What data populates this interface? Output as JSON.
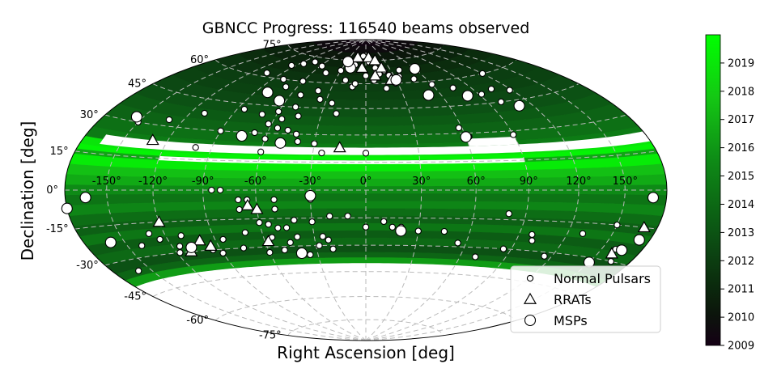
{
  "chart_data": {
    "type": "scatter",
    "projection": "aitoff",
    "title": "GBNCC Progress: 116540 beams observed",
    "xlabel": "Right Ascension [deg]",
    "ylabel": "Declination [deg]",
    "xlim": [
      -180,
      180
    ],
    "ylim": [
      -90,
      90
    ],
    "grid": true,
    "ra_ticks": [
      "-150°",
      "-120°",
      "-90°",
      "-60°",
      "-30°",
      "0°",
      "30°",
      "60°",
      "90°",
      "120°",
      "150°"
    ],
    "ra_tick_values": [
      -150,
      -120,
      -90,
      -60,
      -30,
      0,
      30,
      60,
      90,
      120,
      150
    ],
    "dec_ticks": [
      "75°",
      "60°",
      "45°",
      "30°",
      "15°",
      "0°",
      "-15°",
      "-30°",
      "-45°",
      "-60°",
      "-75°"
    ],
    "dec_tick_values": [
      75,
      60,
      45,
      30,
      15,
      0,
      -15,
      -30,
      -45,
      -60,
      -75
    ],
    "colorbar": {
      "min": 2009,
      "max": 2020,
      "ticks": [
        "2009",
        "2010",
        "2011",
        "2012",
        "2013",
        "2014",
        "2015",
        "2016",
        "2017",
        "2018",
        "2019"
      ],
      "colormap": "black-to-green"
    },
    "coverage": [
      {
        "dec": [
          85,
          90
        ],
        "year": 2009.3
      },
      {
        "dec": [
          80,
          85
        ],
        "year": 2009.6
      },
      {
        "dec": [
          75,
          80
        ],
        "year": 2010.2
      },
      {
        "dec": [
          70,
          75
        ],
        "year": 2010.8
      },
      {
        "dec": [
          65,
          70
        ],
        "year": 2011.2
      },
      {
        "dec": [
          60,
          65
        ],
        "year": 2011.5
      },
      {
        "dec": [
          55,
          60
        ],
        "year": 2012.0
      },
      {
        "dec": [
          50,
          55
        ],
        "year": 2012.2
      },
      {
        "dec": [
          45,
          50
        ],
        "year": 2012.5
      },
      {
        "dec": [
          40,
          45
        ],
        "year": 2012.9
      },
      {
        "dec": [
          35,
          40
        ],
        "year": 2013.3
      },
      {
        "dec": [
          30,
          35
        ],
        "year": 2013.7
      },
      {
        "dec": [
          25,
          30
        ],
        "year": 2014.3
      },
      {
        "dec": [
          21,
          25
        ],
        "year": 2014.8
      },
      {
        "dec": [
          18,
          21
        ],
        "year": 2018.9
      },
      {
        "dec": [
          16,
          18
        ],
        "year": 2019.5
      },
      {
        "dec": [
          14,
          16
        ],
        "year": 2016.5
      },
      {
        "dec": [
          10,
          14
        ],
        "year": 2019.2
      },
      {
        "dec": [
          6,
          10
        ],
        "year": 2017.5
      },
      {
        "dec": [
          2,
          6
        ],
        "year": 2016.7
      },
      {
        "dec": [
          -2,
          2
        ],
        "year": 2015.5
      },
      {
        "dec": [
          -6,
          -2
        ],
        "year": 2014.5
      },
      {
        "dec": [
          -10,
          -6
        ],
        "year": 2015.3
      },
      {
        "dec": [
          -14,
          -10
        ],
        "year": 2014.2
      },
      {
        "dec": [
          -18,
          -14
        ],
        "year": 2013.6
      },
      {
        "dec": [
          -22,
          -18
        ],
        "year": 2014.6
      },
      {
        "dec": [
          -26,
          -22
        ],
        "year": 2013.4
      },
      {
        "dec": [
          -30,
          -26
        ],
        "year": 2014.0
      },
      {
        "dec": [
          -34,
          -30
        ],
        "year": 2012.9
      },
      {
        "dec": [
          -37,
          -34
        ],
        "year": 2013.8
      },
      {
        "dec": [
          -40,
          -37
        ],
        "year": 2016.2
      }
    ],
    "unobserved": [
      {
        "dec": [
          19,
          23
        ],
        "ra": [
          -165,
          180
        ]
      },
      {
        "dec": [
          14,
          16
        ],
        "ra": [
          -120,
          90
        ]
      },
      {
        "dec": [
          23,
          27
        ],
        "ra": [
          60,
          90
        ]
      }
    ],
    "series": [
      {
        "name": "Normal Pulsars",
        "marker": "circle-small",
        "points": [
          [
            -95,
            68
          ],
          [
            -85,
            70
          ],
          [
            -75,
            72
          ],
          [
            -58,
            70
          ],
          [
            -45,
            66
          ],
          [
            -30,
            68
          ],
          [
            -15,
            72
          ],
          [
            -5,
            78
          ],
          [
            5,
            74
          ],
          [
            12,
            70
          ],
          [
            22,
            68
          ],
          [
            35,
            64
          ],
          [
            48,
            62
          ],
          [
            60,
            58
          ],
          [
            75,
            55
          ],
          [
            92,
            50
          ],
          [
            105,
            52
          ],
          [
            -105,
            62
          ],
          [
            -80,
            60
          ],
          [
            -70,
            56
          ],
          [
            -60,
            60
          ],
          [
            -52,
            52
          ],
          [
            -40,
            55
          ],
          [
            -35,
            50
          ],
          [
            -25,
            48
          ],
          [
            -12,
            58
          ],
          [
            0,
            65
          ],
          [
            8,
            62
          ],
          [
            18,
            57
          ],
          [
            28,
            60
          ],
          [
            -20,
            62
          ],
          [
            -10,
            60
          ],
          [
            15,
            66
          ],
          [
            25,
            65
          ],
          [
            40,
            68
          ],
          [
            -65,
            48
          ],
          [
            -60,
            42
          ],
          [
            -55,
            38
          ],
          [
            -50,
            45
          ],
          [
            -45,
            40
          ],
          [
            -48,
            32
          ],
          [
            -42,
            30
          ],
          [
            -55,
            33
          ],
          [
            -62,
            35
          ],
          [
            -68,
            30
          ],
          [
            -70,
            40
          ],
          [
            -85,
            42
          ],
          [
            -110,
            38
          ],
          [
            -130,
            33
          ],
          [
            -150,
            30
          ],
          [
            -90,
            30
          ],
          [
            -60,
            27
          ],
          [
            -50,
            25
          ],
          [
            -40,
            26
          ],
          [
            -30,
            25
          ],
          [
            -20,
            42
          ],
          [
            -25,
            20
          ],
          [
            0,
            20
          ],
          [
            -100,
            21
          ],
          [
            58,
            33
          ],
          [
            62,
            28
          ],
          [
            90,
            28
          ],
          [
            120,
            60
          ],
          [
            118,
            50
          ],
          [
            100,
            45
          ],
          [
            -60,
            20
          ],
          [
            -30,
            -5
          ],
          [
            -85,
            0
          ],
          [
            -80,
            0
          ],
          [
            -70,
            -5
          ],
          [
            -65,
            -5
          ],
          [
            -50,
            -5
          ],
          [
            -50,
            -10
          ],
          [
            -70,
            -10
          ],
          [
            -20,
            -14
          ],
          [
            -10,
            -14
          ],
          [
            -60,
            -17
          ],
          [
            -40,
            -16
          ],
          [
            -30,
            -17
          ],
          [
            -55,
            -18
          ],
          [
            -50,
            -20
          ],
          [
            -45,
            -20
          ],
          [
            -40,
            -25
          ],
          [
            -55,
            -25
          ],
          [
            -45,
            -28
          ],
          [
            -50,
            -32
          ],
          [
            -60,
            -33
          ],
          [
            -70,
            -22
          ],
          [
            -75,
            -30
          ],
          [
            -85,
            -25
          ],
          [
            -90,
            -32
          ],
          [
            -95,
            -30
          ],
          [
            -110,
            -22
          ],
          [
            -115,
            -27
          ],
          [
            -118,
            -30
          ],
          [
            -125,
            -23
          ],
          [
            -130,
            -20
          ],
          [
            -140,
            -25
          ],
          [
            -160,
            -35
          ],
          [
            -25,
            -25
          ],
          [
            -22,
            -27
          ],
          [
            -20,
            -32
          ],
          [
            0,
            -20
          ],
          [
            10,
            -17
          ],
          [
            15,
            -20
          ],
          [
            20,
            -20
          ],
          [
            30,
            -22
          ],
          [
            45,
            -22
          ],
          [
            55,
            -28
          ],
          [
            70,
            -35
          ],
          [
            80,
            -12
          ],
          [
            85,
            -30
          ],
          [
            98,
            -22
          ],
          [
            100,
            -25
          ],
          [
            115,
            -32
          ],
          [
            130,
            -20
          ],
          [
            150,
            -15
          ],
          [
            160,
            -25
          ],
          [
            165,
            -30
          ],
          [
            -28,
            -30
          ],
          [
            -35,
            -35
          ]
        ]
      },
      {
        "name": "RRATs",
        "marker": "triangle",
        "points": [
          [
            -15,
            77
          ],
          [
            5,
            77
          ],
          [
            15,
            75
          ],
          [
            20,
            70
          ],
          [
            10,
            65
          ],
          [
            25,
            62
          ],
          [
            -5,
            70
          ],
          [
            -130,
            23
          ],
          [
            -15,
            23
          ],
          [
            -60,
            -10
          ],
          [
            -65,
            -8
          ],
          [
            -120,
            -15
          ],
          [
            -100,
            -25
          ],
          [
            -110,
            -30
          ],
          [
            -95,
            -28
          ],
          [
            -58,
            -27
          ],
          [
            160,
            -27
          ],
          [
            170,
            -15
          ]
        ]
      },
      {
        "name": "MSPs",
        "marker": "circle-large",
        "points": [
          [
            -65,
            48
          ],
          [
            -80,
            52
          ],
          [
            -20,
            70
          ],
          [
            -28,
            74
          ],
          [
            30,
            62
          ],
          [
            60,
            68
          ],
          [
            50,
            52
          ],
          [
            80,
            50
          ],
          [
            110,
            42
          ],
          [
            -155,
            32
          ],
          [
            -75,
            28
          ],
          [
            -50,
            25
          ],
          [
            60,
            28
          ],
          [
            -180,
            -7
          ],
          [
            -165,
            -3
          ],
          [
            -30,
            -3
          ],
          [
            -160,
            -22
          ],
          [
            -108,
            -28
          ],
          [
            -40,
            -34
          ],
          [
            20,
            -22
          ],
          [
            150,
            -32
          ],
          [
            172,
            -20
          ],
          [
            170,
            -3
          ],
          [
            165,
            -25
          ]
        ]
      }
    ],
    "legend_position": "lower-right"
  }
}
